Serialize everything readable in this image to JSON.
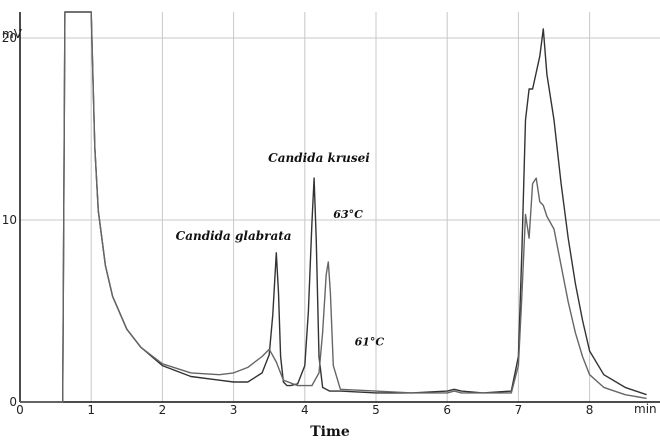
{
  "chart_data": {
    "type": "line",
    "title": "",
    "xlabel": "Time",
    "x_unit": "min",
    "y_unit": "mV",
    "xlim": [
      0,
      8.8
    ],
    "ylim": [
      0,
      21
    ],
    "x_ticks": [
      "0",
      "1",
      "2",
      "3",
      "4",
      "5",
      "6",
      "7",
      "8"
    ],
    "y_ticks": [
      "0",
      "10",
      "20"
    ],
    "grid": true,
    "annotations": [
      {
        "text": "Candida krusei",
        "x": 4.2,
        "y": 13.2
      },
      {
        "text": "Candida glabrata",
        "x": 3.0,
        "y": 8.9
      },
      {
        "text": "63°C",
        "x": 4.4,
        "y": 10.1
      },
      {
        "text": "61°C",
        "x": 4.7,
        "y": 3.1
      }
    ],
    "series": [
      {
        "color": "#333333",
        "x": [
          0,
          0.6,
          0.63,
          1.0,
          1.05,
          1.1,
          1.2,
          1.3,
          1.5,
          1.7,
          2.0,
          2.4,
          2.8,
          3.0,
          3.2,
          3.4,
          3.5,
          3.55,
          3.6,
          3.63,
          3.66,
          3.7,
          3.75,
          3.8,
          3.9,
          4.0,
          4.05,
          4.1,
          4.13,
          4.16,
          4.2,
          4.25,
          4.35,
          4.5,
          5.0,
          5.5,
          6.0,
          6.1,
          6.2,
          6.5,
          6.9,
          7.0,
          7.05,
          7.1,
          7.15,
          7.2,
          7.3,
          7.35,
          7.4,
          7.5,
          7.6,
          7.7,
          7.8,
          7.9,
          8.0,
          8.2,
          8.5,
          8.8
        ],
        "y": [
          0,
          0,
          21.5,
          21.5,
          14.0,
          10.5,
          7.5,
          5.8,
          4.0,
          3.0,
          2.0,
          1.4,
          1.2,
          1.1,
          1.1,
          1.6,
          2.6,
          4.8,
          8.2,
          6.0,
          2.5,
          1.1,
          0.9,
          0.9,
          1.0,
          2.0,
          5.0,
          9.8,
          12.3,
          9.0,
          2.5,
          0.8,
          0.6,
          0.6,
          0.5,
          0.5,
          0.6,
          0.7,
          0.6,
          0.5,
          0.6,
          2.5,
          8.5,
          15.5,
          17.2,
          17.2,
          19.0,
          20.5,
          18.0,
          15.5,
          12.0,
          9.0,
          6.5,
          4.5,
          2.8,
          1.5,
          0.8,
          0.4
        ]
      },
      {
        "color": "#666666",
        "x": [
          0,
          0.6,
          0.63,
          1.0,
          1.05,
          1.1,
          1.2,
          1.3,
          1.5,
          1.7,
          2.0,
          2.4,
          2.8,
          3.0,
          3.2,
          3.4,
          3.5,
          3.6,
          3.7,
          3.9,
          4.1,
          4.2,
          4.25,
          4.3,
          4.33,
          4.36,
          4.4,
          4.5,
          5.0,
          5.5,
          6.0,
          6.1,
          6.2,
          6.5,
          6.9,
          7.0,
          7.05,
          7.1,
          7.15,
          7.2,
          7.25,
          7.3,
          7.35,
          7.4,
          7.5,
          7.6,
          7.7,
          7.8,
          7.9,
          8.0,
          8.2,
          8.5,
          8.8
        ],
        "y": [
          0,
          0,
          21.5,
          21.5,
          14.0,
          10.5,
          7.5,
          5.8,
          4.0,
          3.0,
          2.1,
          1.6,
          1.5,
          1.6,
          1.9,
          2.5,
          2.9,
          2.2,
          1.2,
          0.9,
          0.9,
          1.6,
          3.8,
          7.0,
          7.7,
          6.0,
          2.0,
          0.7,
          0.6,
          0.5,
          0.5,
          0.6,
          0.5,
          0.5,
          0.5,
          2.0,
          6.0,
          10.3,
          9.0,
          12.0,
          12.3,
          11.0,
          10.8,
          10.2,
          9.5,
          7.5,
          5.5,
          3.8,
          2.5,
          1.5,
          0.8,
          0.4,
          0.2
        ]
      }
    ]
  }
}
